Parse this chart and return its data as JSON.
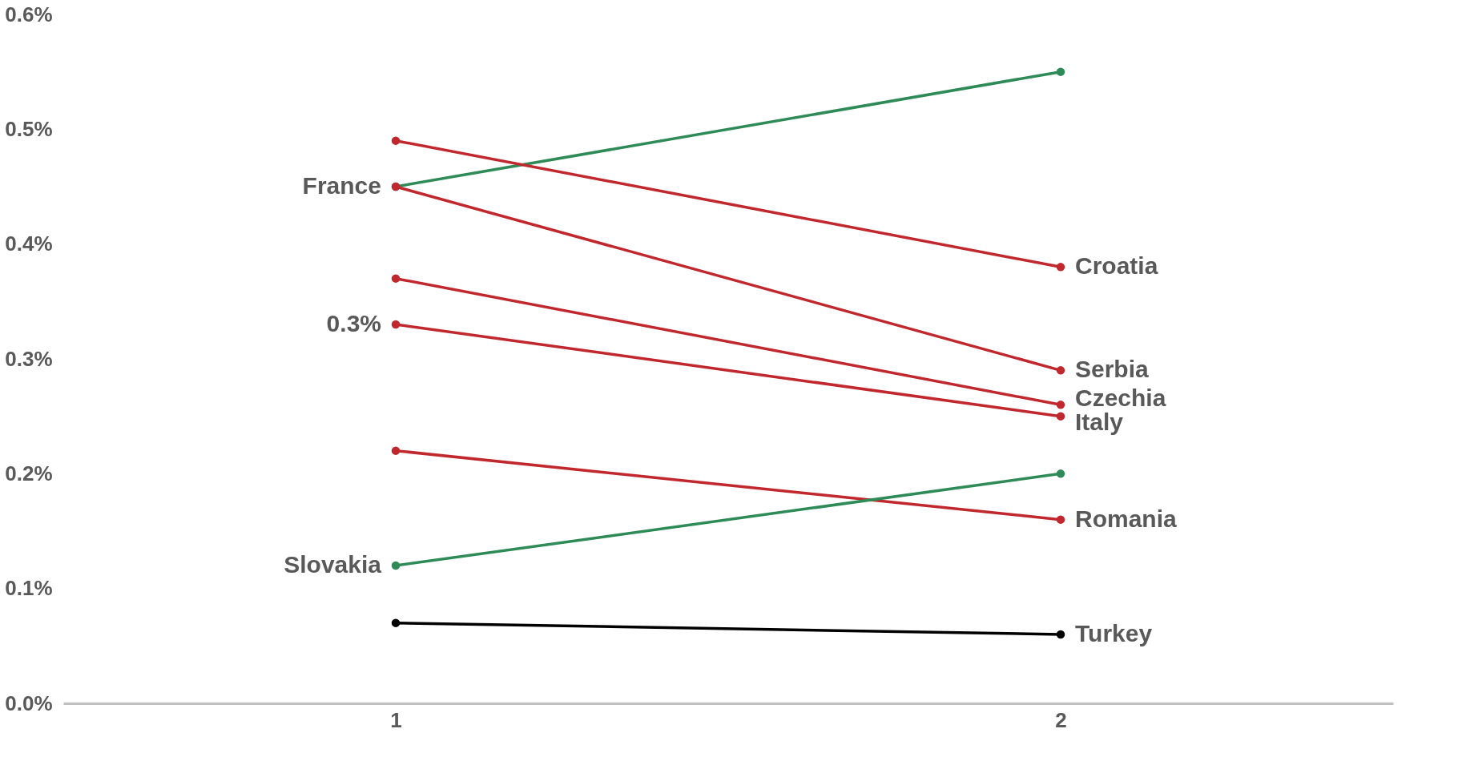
{
  "chart_data": {
    "type": "line",
    "x": [
      1,
      2
    ],
    "series": [
      {
        "name": "France",
        "color": "#2e8b57",
        "values": [
          0.45,
          0.55
        ]
      },
      {
        "name": "Croatia",
        "color": "#c0282d",
        "values": [
          0.49,
          0.38
        ]
      },
      {
        "name": "Serbia",
        "color": "#c0282d",
        "values": [
          0.45,
          0.29
        ]
      },
      {
        "name": "Czechia",
        "color": "#c0282d",
        "values": [
          0.37,
          0.26
        ]
      },
      {
        "name": "Italy",
        "color": "#c0282d",
        "values": [
          0.33,
          0.25
        ]
      },
      {
        "name": "Romania",
        "color": "#c0282d",
        "values": [
          0.22,
          0.16
        ]
      },
      {
        "name": "Slovakia",
        "color": "#2e8b57",
        "values": [
          0.12,
          0.2
        ]
      },
      {
        "name": "Turkey",
        "color": "#000000",
        "values": [
          0.07,
          0.06
        ]
      }
    ],
    "annotations": [
      {
        "text": "0.3%",
        "x": 1,
        "y": 0.33
      }
    ],
    "xlim": [
      0.5,
      2.5
    ],
    "xticks": [
      1,
      2
    ],
    "ylim": [
      0,
      0.6
    ],
    "yticks": [
      {
        "value": 0,
        "label": "0.0%"
      },
      {
        "value": 0.1,
        "label": "0.1%"
      },
      {
        "value": 0.2,
        "label": "0.2%"
      },
      {
        "value": 0.3,
        "label": "0.3%"
      },
      {
        "value": 0.4,
        "label": "0.4%"
      },
      {
        "value": 0.5,
        "label": "0.5%"
      },
      {
        "value": 0.6,
        "label": "0.6%"
      }
    ],
    "grid": false,
    "marker": "circle",
    "line_style": "solid"
  }
}
